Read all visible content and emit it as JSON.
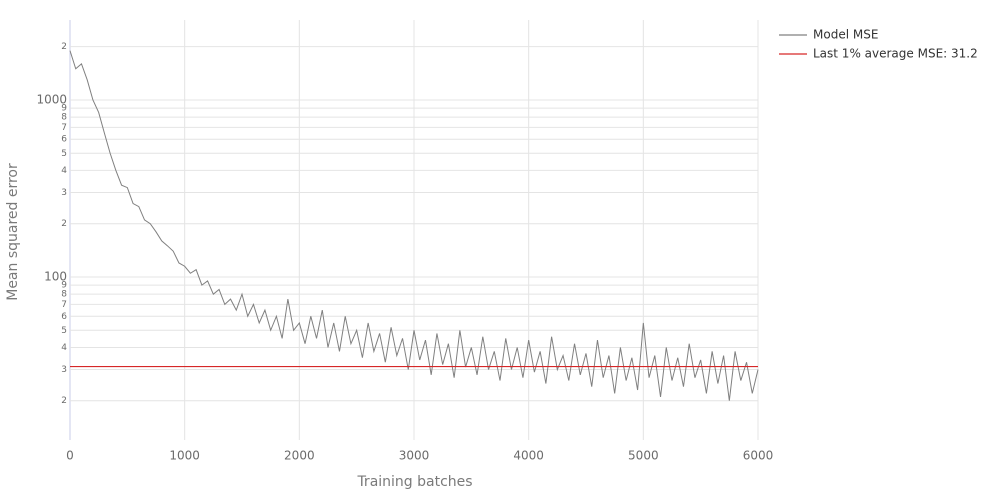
{
  "chart_data": {
    "type": "line",
    "x_label": "Training batches",
    "y_label": "Mean squared error",
    "log_y": true,
    "grid": true,
    "xlim": [
      0,
      6000
    ],
    "xticks": [
      0,
      1000,
      2000,
      3000,
      4000,
      5000,
      6000
    ],
    "ylim": [
      12,
      2830
    ],
    "yticks": [
      {
        "value": 20,
        "label": "2"
      },
      {
        "value": 30,
        "label": "3"
      },
      {
        "value": 40,
        "label": "4"
      },
      {
        "value": 50,
        "label": "5"
      },
      {
        "value": 60,
        "label": "6"
      },
      {
        "value": 70,
        "label": "7"
      },
      {
        "value": 80,
        "label": "8"
      },
      {
        "value": 90,
        "label": "9"
      },
      100,
      {
        "value": 200,
        "label": "2"
      },
      {
        "value": 300,
        "label": "3"
      },
      {
        "value": 400,
        "label": "4"
      },
      {
        "value": 500,
        "label": "5"
      },
      {
        "value": 600,
        "label": "6"
      },
      {
        "value": 700,
        "label": "7"
      },
      {
        "value": 800,
        "label": "8"
      },
      {
        "value": 900,
        "label": "9"
      },
      1000,
      {
        "value": 2000,
        "label": "2"
      }
    ],
    "x": [
      0,
      50,
      100,
      150,
      200,
      250,
      300,
      350,
      400,
      450,
      500,
      550,
      600,
      650,
      700,
      750,
      800,
      850,
      900,
      950,
      1000,
      1050,
      1100,
      1150,
      1200,
      1250,
      1300,
      1350,
      1400,
      1450,
      1500,
      1550,
      1600,
      1650,
      1700,
      1750,
      1800,
      1850,
      1900,
      1950,
      2000,
      2050,
      2100,
      2150,
      2200,
      2250,
      2300,
      2350,
      2400,
      2450,
      2500,
      2550,
      2600,
      2650,
      2700,
      2750,
      2800,
      2850,
      2900,
      2950,
      3000,
      3050,
      3100,
      3150,
      3200,
      3250,
      3300,
      3350,
      3400,
      3450,
      3500,
      3550,
      3600,
      3650,
      3700,
      3750,
      3800,
      3850,
      3900,
      3950,
      4000,
      4050,
      4100,
      4150,
      4200,
      4250,
      4300,
      4350,
      4400,
      4450,
      4500,
      4550,
      4600,
      4650,
      4700,
      4750,
      4800,
      4850,
      4900,
      4950,
      5000,
      5050,
      5100,
      5150,
      5200,
      5250,
      5300,
      5350,
      5400,
      5450,
      5500,
      5550,
      5600,
      5650,
      5700,
      5750,
      5800,
      5850,
      5900,
      5950,
      6000
    ],
    "series": [
      {
        "name": "Model MSE",
        "color": "#808080",
        "values": [
          1900,
          1500,
          1600,
          1300,
          1000,
          850,
          650,
          500,
          400,
          330,
          320,
          260,
          250,
          210,
          200,
          180,
          160,
          150,
          140,
          120,
          115,
          105,
          110,
          90,
          95,
          80,
          85,
          70,
          75,
          65,
          80,
          60,
          70,
          55,
          65,
          50,
          60,
          45,
          75,
          50,
          55,
          42,
          60,
          45,
          65,
          40,
          55,
          38,
          60,
          42,
          50,
          35,
          55,
          38,
          48,
          33,
          52,
          36,
          45,
          30,
          50,
          34,
          44,
          28,
          48,
          32,
          42,
          27,
          50,
          31,
          40,
          28,
          46,
          30,
          38,
          26,
          45,
          30,
          40,
          27,
          44,
          29,
          38,
          25,
          46,
          30,
          36,
          26,
          42,
          28,
          37,
          24,
          44,
          27,
          36,
          22,
          40,
          26,
          35,
          23,
          55,
          27,
          36,
          21,
          40,
          26,
          35,
          24,
          42,
          27,
          34,
          22,
          38,
          25,
          36,
          20,
          38,
          26,
          33,
          22,
          30
        ]
      }
    ],
    "hline": {
      "name": "Last 1% average MSE: 31.2",
      "value": 31.2,
      "color": "#d62728"
    }
  }
}
